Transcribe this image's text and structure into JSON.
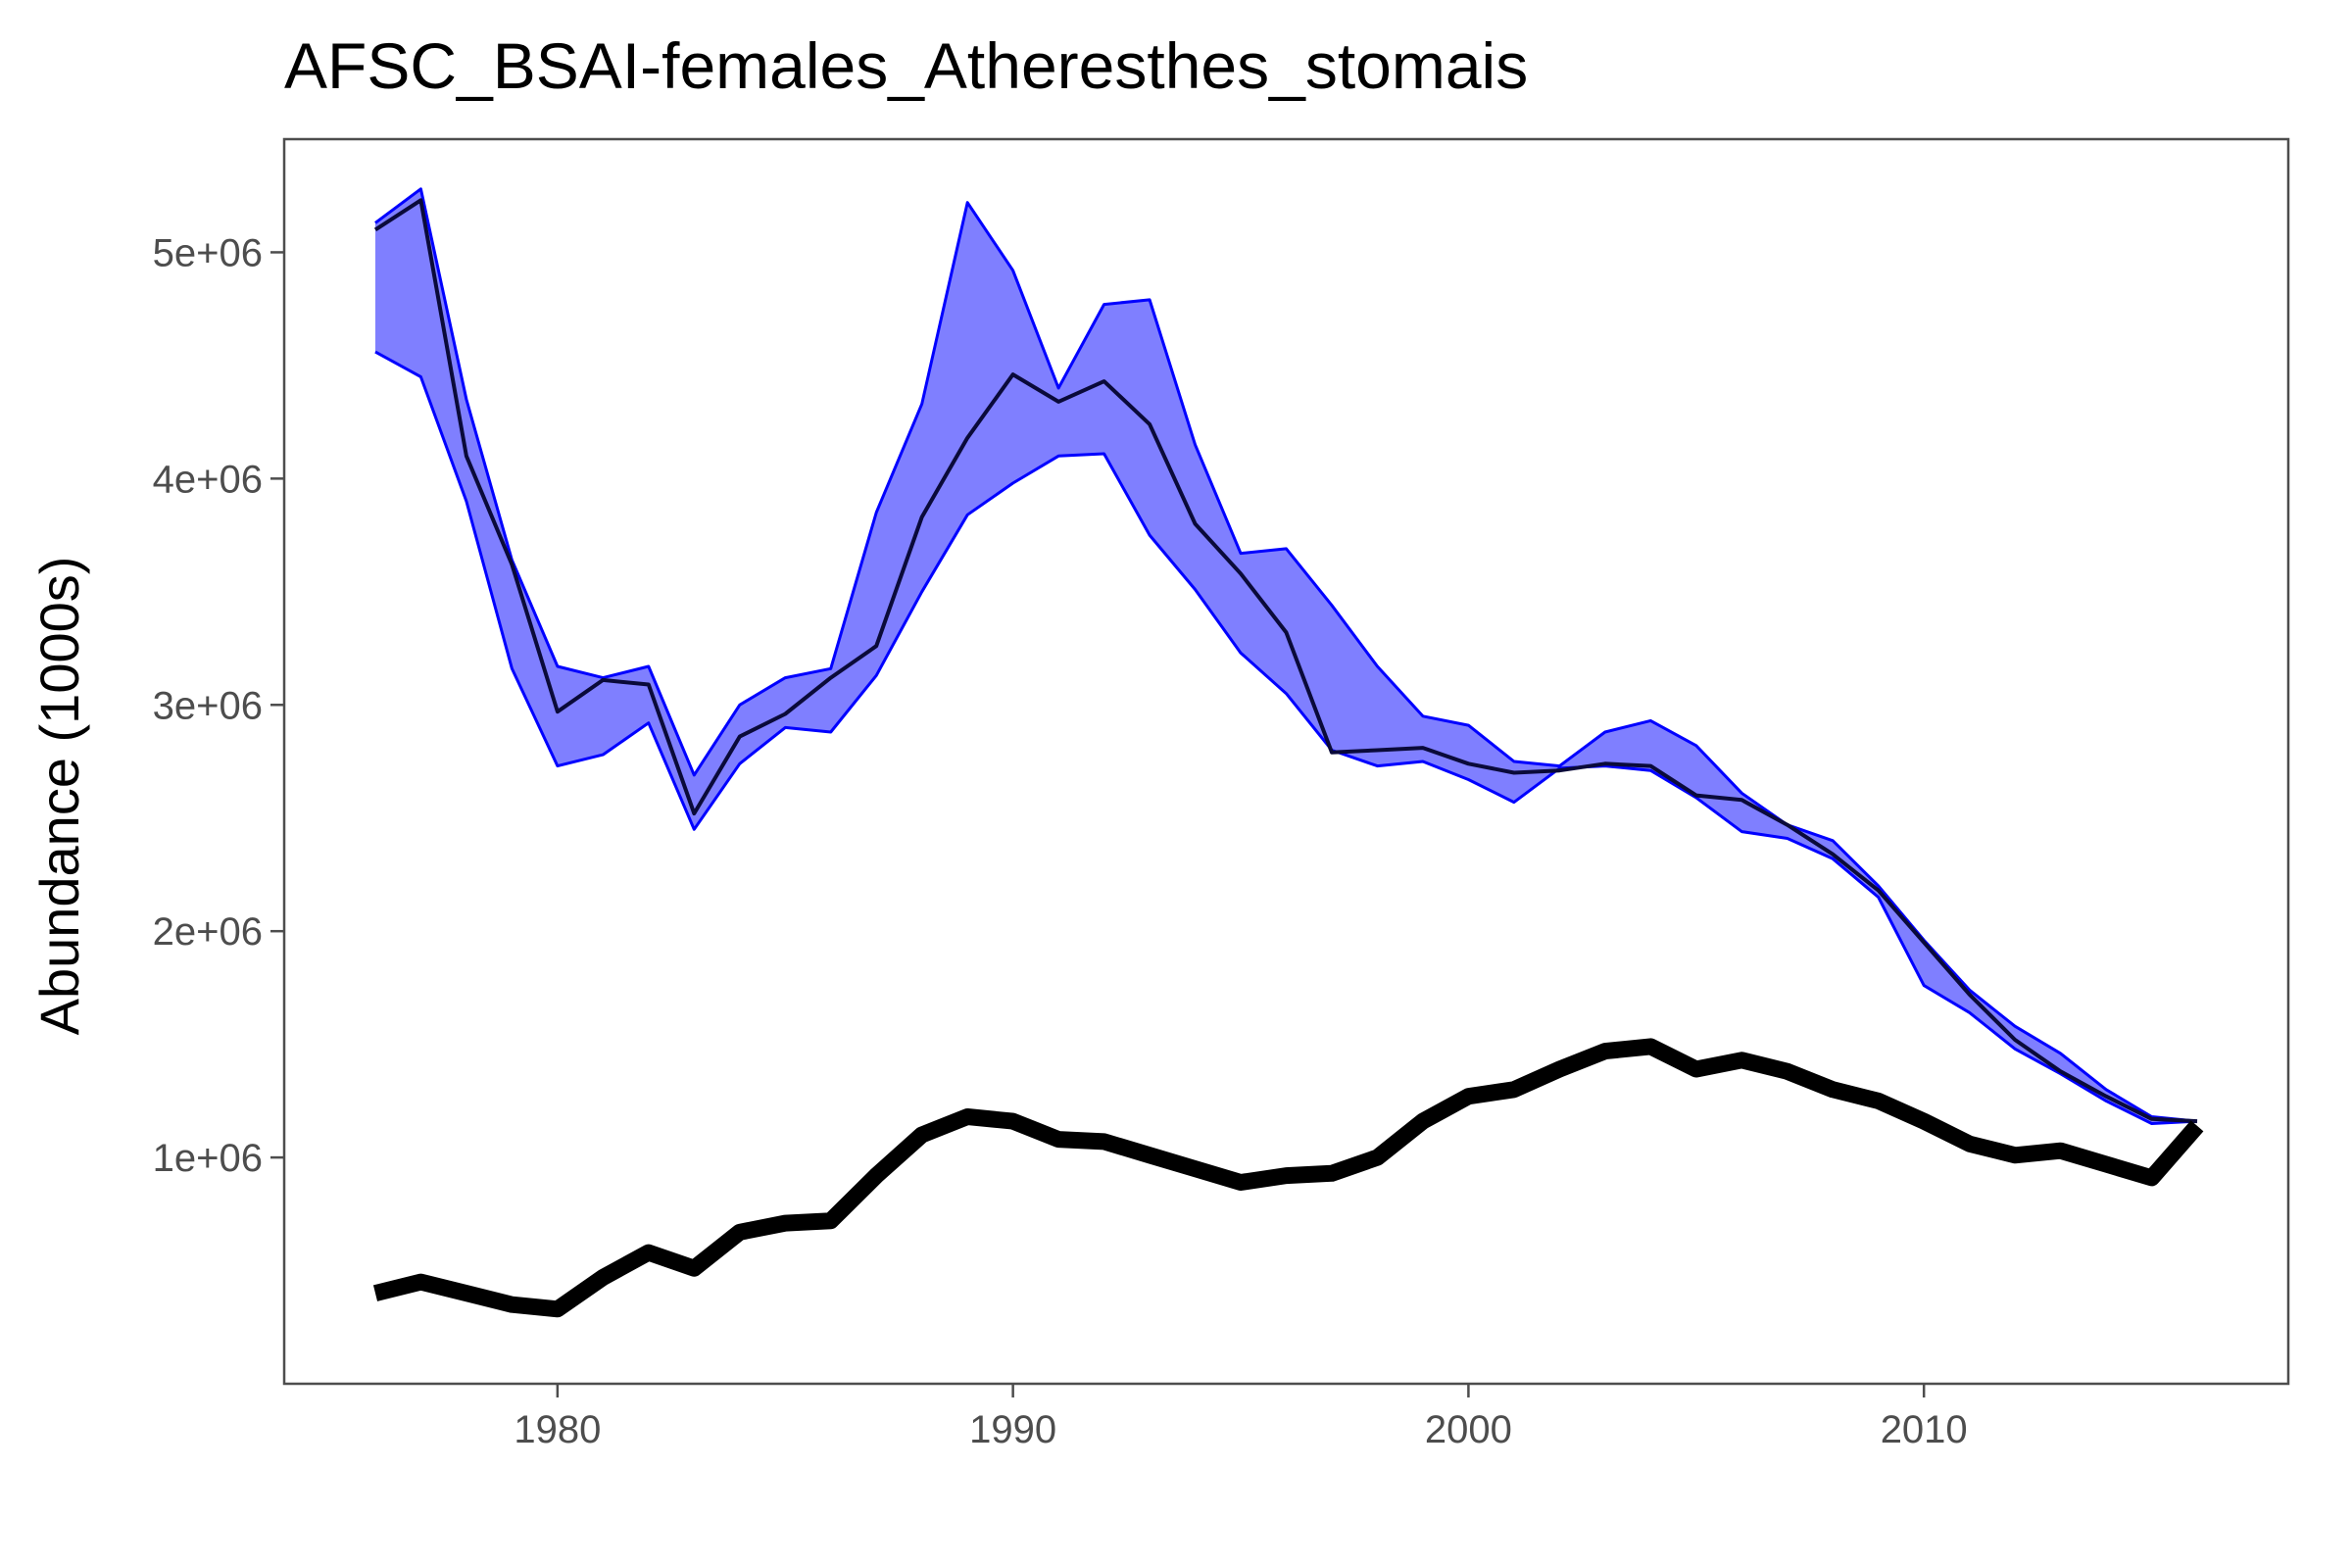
{
  "chart_data": {
    "type": "line",
    "title": "AFSC_BSAI-females_Atheresthes_stomais",
    "xlabel": "",
    "ylabel": "Abundance (1000s)",
    "xlim": [
      1974,
      2018
    ],
    "ylim": [
      0,
      5500000
    ],
    "x_ticks": [
      1980,
      1990,
      2000,
      2010
    ],
    "y_ticks": [
      1000000,
      2000000,
      3000000,
      4000000,
      5000000
    ],
    "y_tick_labels": [
      "1e+06",
      "2e+06",
      "3e+06",
      "4e+06",
      "5e+06"
    ],
    "grid": false,
    "legend": "none",
    "x": [
      1976,
      1977,
      1978,
      1979,
      1980,
      1981,
      1982,
      1983,
      1984,
      1985,
      1986,
      1987,
      1988,
      1989,
      1990,
      1991,
      1992,
      1993,
      1994,
      1995,
      1996,
      1997,
      1998,
      1999,
      2000,
      2001,
      2002,
      2003,
      2004,
      2005,
      2006,
      2007,
      2008,
      2009,
      2010,
      2011,
      2012,
      2013,
      2014,
      2015,
      2016
    ],
    "series": [
      {
        "role": "band-upper",
        "values": [
          5130000,
          5280000,
          4350000,
          3640000,
          3170000,
          3120000,
          3170000,
          2690000,
          3000000,
          3120000,
          3160000,
          3850000,
          4330000,
          5220000,
          4920000,
          4400000,
          4770000,
          4790000,
          4150000,
          3670000,
          3690000,
          3440000,
          3170000,
          2950000,
          2910000,
          2750000,
          2730000,
          2880000,
          2930000,
          2820000,
          2610000,
          2470000,
          2400000,
          2200000,
          1960000,
          1740000,
          1580000,
          1460000,
          1300000,
          1180000,
          1160000
        ]
      },
      {
        "role": "band-lower",
        "values": [
          4560000,
          4450000,
          3900000,
          3160000,
          2730000,
          2780000,
          2920000,
          2450000,
          2740000,
          2900000,
          2880000,
          3130000,
          3500000,
          3840000,
          3980000,
          4100000,
          4110000,
          3750000,
          3510000,
          3230000,
          3050000,
          2800000,
          2730000,
          2750000,
          2670000,
          2570000,
          2720000,
          2730000,
          2710000,
          2590000,
          2440000,
          2410000,
          2320000,
          2150000,
          1760000,
          1640000,
          1480000,
          1370000,
          1250000,
          1150000,
          1160000
        ]
      },
      {
        "role": "estimate",
        "values": [
          5100000,
          5230000,
          4100000,
          3620000,
          2970000,
          3110000,
          3090000,
          2520000,
          2860000,
          2960000,
          3120000,
          3260000,
          3830000,
          4180000,
          4460000,
          4340000,
          4430000,
          4240000,
          3800000,
          3580000,
          3320000,
          2790000,
          2800000,
          2810000,
          2740000,
          2700000,
          2710000,
          2740000,
          2730000,
          2600000,
          2580000,
          2470000,
          2340000,
          2180000,
          1950000,
          1720000,
          1520000,
          1380000,
          1270000,
          1170000,
          1160000
        ]
      },
      {
        "role": "reference",
        "values": [
          400000,
          450000,
          400000,
          350000,
          330000,
          470000,
          580000,
          510000,
          670000,
          710000,
          720000,
          920000,
          1100000,
          1180000,
          1160000,
          1080000,
          1070000,
          1010000,
          950000,
          890000,
          920000,
          930000,
          1000000,
          1160000,
          1270000,
          1300000,
          1390000,
          1470000,
          1490000,
          1390000,
          1430000,
          1380000,
          1300000,
          1250000,
          1160000,
          1060000,
          1010000,
          1030000,
          970000,
          910000,
          1140000
        ]
      }
    ],
    "colors": {
      "band_fill": "#0000ff",
      "band_fill_opacity": 0.5,
      "band_stroke": "#0000ff",
      "estimate": "#0a0a3a",
      "reference": "#000000",
      "axis": "#4d4d4d"
    }
  }
}
